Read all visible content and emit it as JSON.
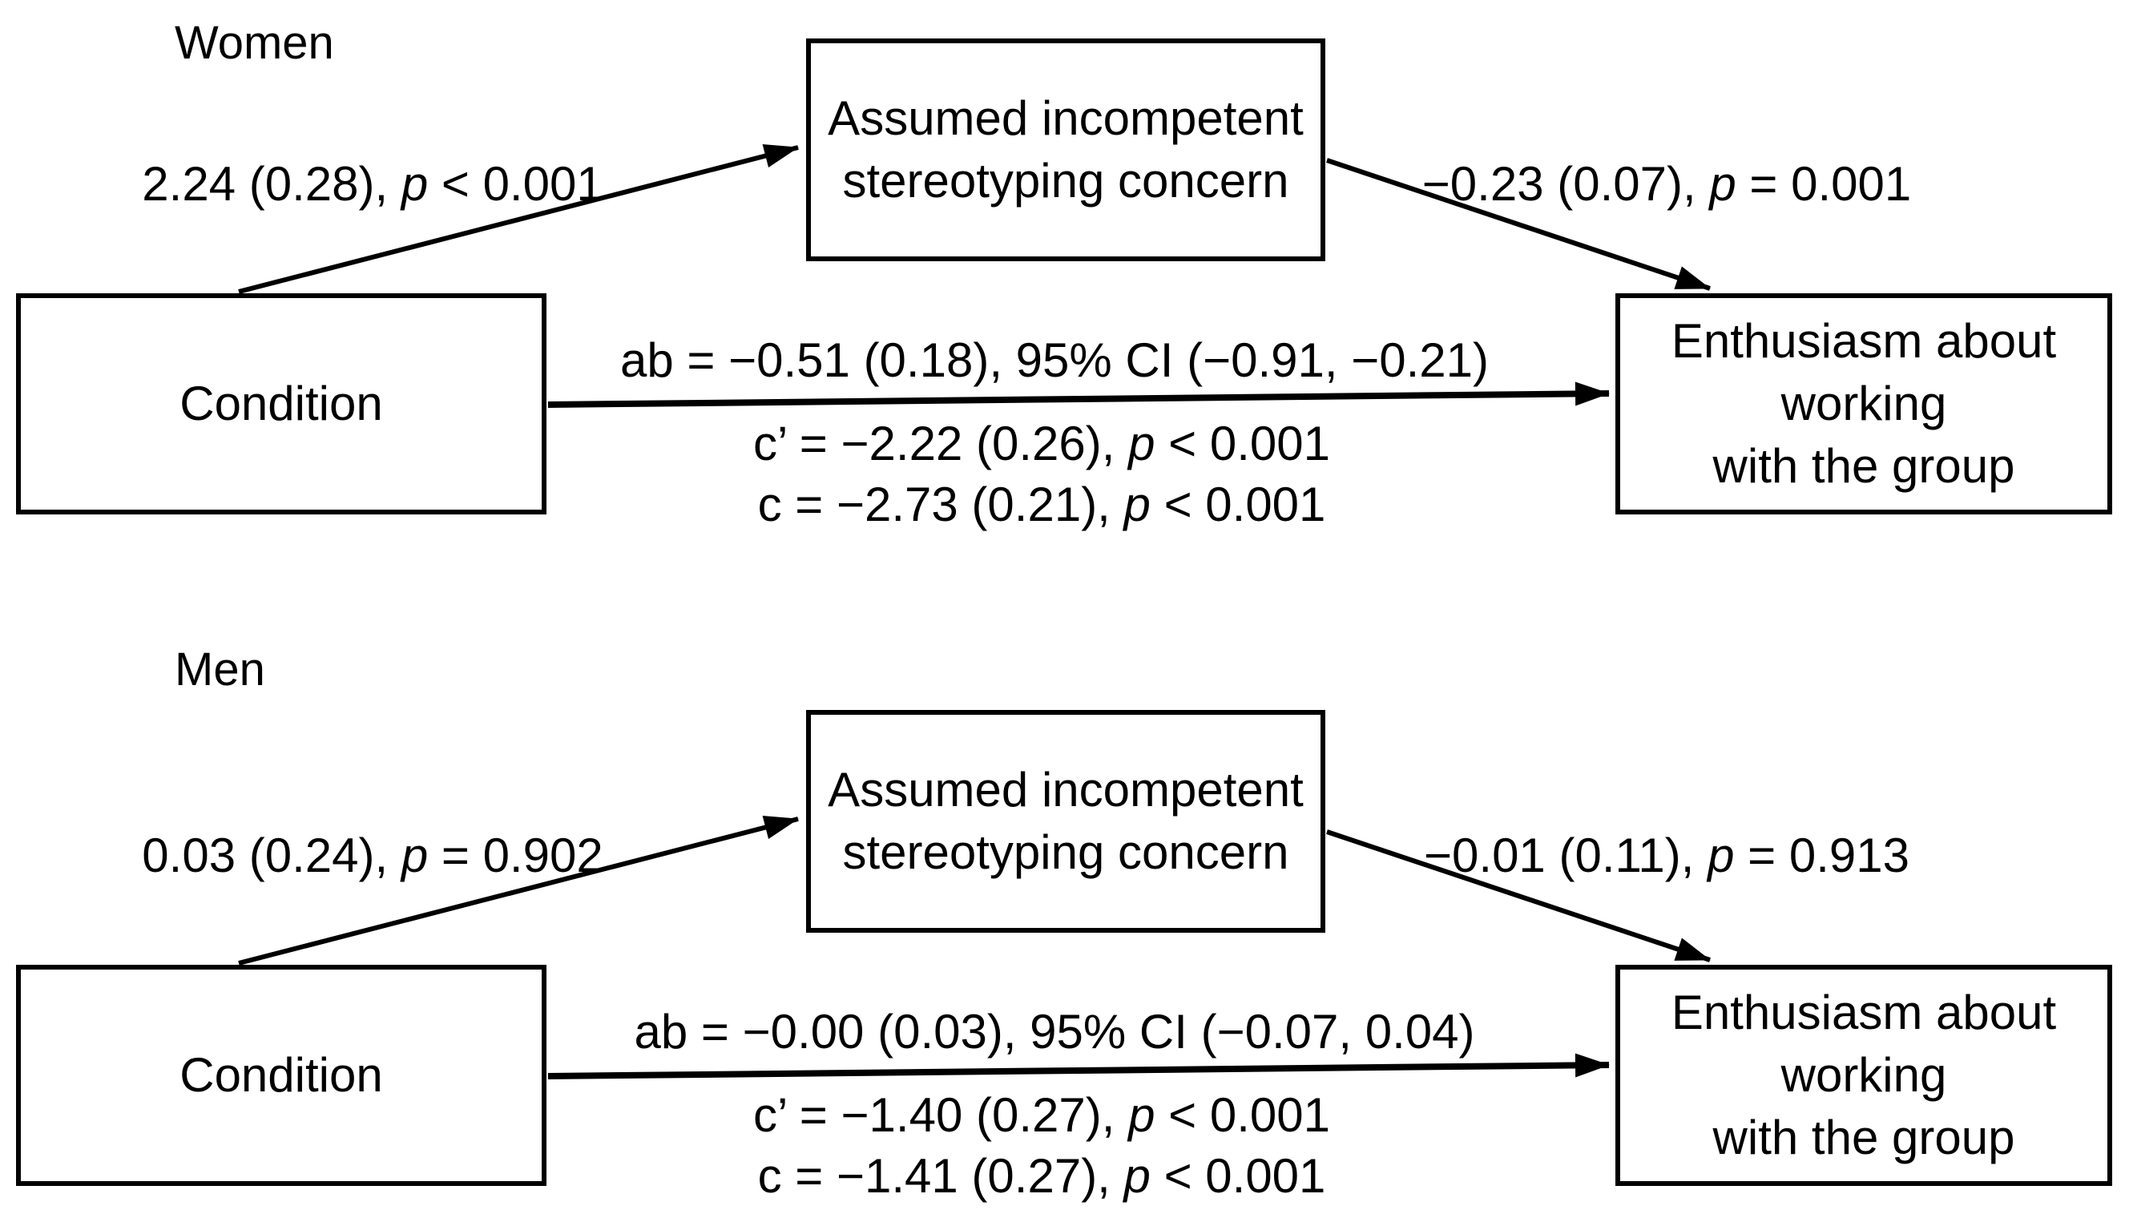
{
  "colors": {
    "background": "#ffffff",
    "ink": "#000000"
  },
  "panels": [
    {
      "id": "women",
      "group_label": "Women",
      "predictor_box": {
        "label": "Condition"
      },
      "mediator_box": {
        "line1": "Assumed incompetent",
        "line2": "stereotyping concern"
      },
      "outcome_box": {
        "line1": "Enthusiasm about",
        "line2": "working",
        "line3": "with the group"
      },
      "path_a_label": [
        {
          "t": "2.24 (0.28), "
        },
        {
          "t": "p",
          "i": true
        },
        {
          "t": " < 0.001"
        }
      ],
      "path_b_label": [
        {
          "t": "−0.23 (0.07), "
        },
        {
          "t": "p",
          "i": true
        },
        {
          "t": " = 0.001"
        }
      ],
      "indirect_effect_label": [
        {
          "t": "ab = −0.51 (0.18), 95% CI (−0.91, −0.21)"
        }
      ],
      "direct_effect_label": [
        {
          "t": "c’ = −2.22 (0.26), "
        },
        {
          "t": "p",
          "i": true
        },
        {
          "t": " < 0.001"
        }
      ],
      "total_effect_label": [
        {
          "t": "c = −2.73 (0.21), "
        },
        {
          "t": "p",
          "i": true
        },
        {
          "t": " < 0.001"
        }
      ]
    },
    {
      "id": "men",
      "group_label": "Men",
      "predictor_box": {
        "label": "Condition"
      },
      "mediator_box": {
        "line1": "Assumed incompetent",
        "line2": "stereotyping concern"
      },
      "outcome_box": {
        "line1": "Enthusiasm about",
        "line2": "working",
        "line3": "with the group"
      },
      "path_a_label": [
        {
          "t": "0.03 (0.24), "
        },
        {
          "t": "p",
          "i": true
        },
        {
          "t": " = 0.902"
        }
      ],
      "path_b_label": [
        {
          "t": "−0.01 (0.11), "
        },
        {
          "t": "p",
          "i": true
        },
        {
          "t": " = 0.913"
        }
      ],
      "indirect_effect_label": [
        {
          "t": "ab = −0.00 (0.03), 95% CI (−0.07, 0.04)"
        }
      ],
      "direct_effect_label": [
        {
          "t": "c’ = −1.40 (0.27), "
        },
        {
          "t": "p",
          "i": true
        },
        {
          "t": " < 0.001"
        }
      ],
      "total_effect_label": [
        {
          "t": "c = −1.41 (0.27), "
        },
        {
          "t": "p",
          "i": true
        },
        {
          "t": " < 0.001"
        }
      ]
    }
  ]
}
